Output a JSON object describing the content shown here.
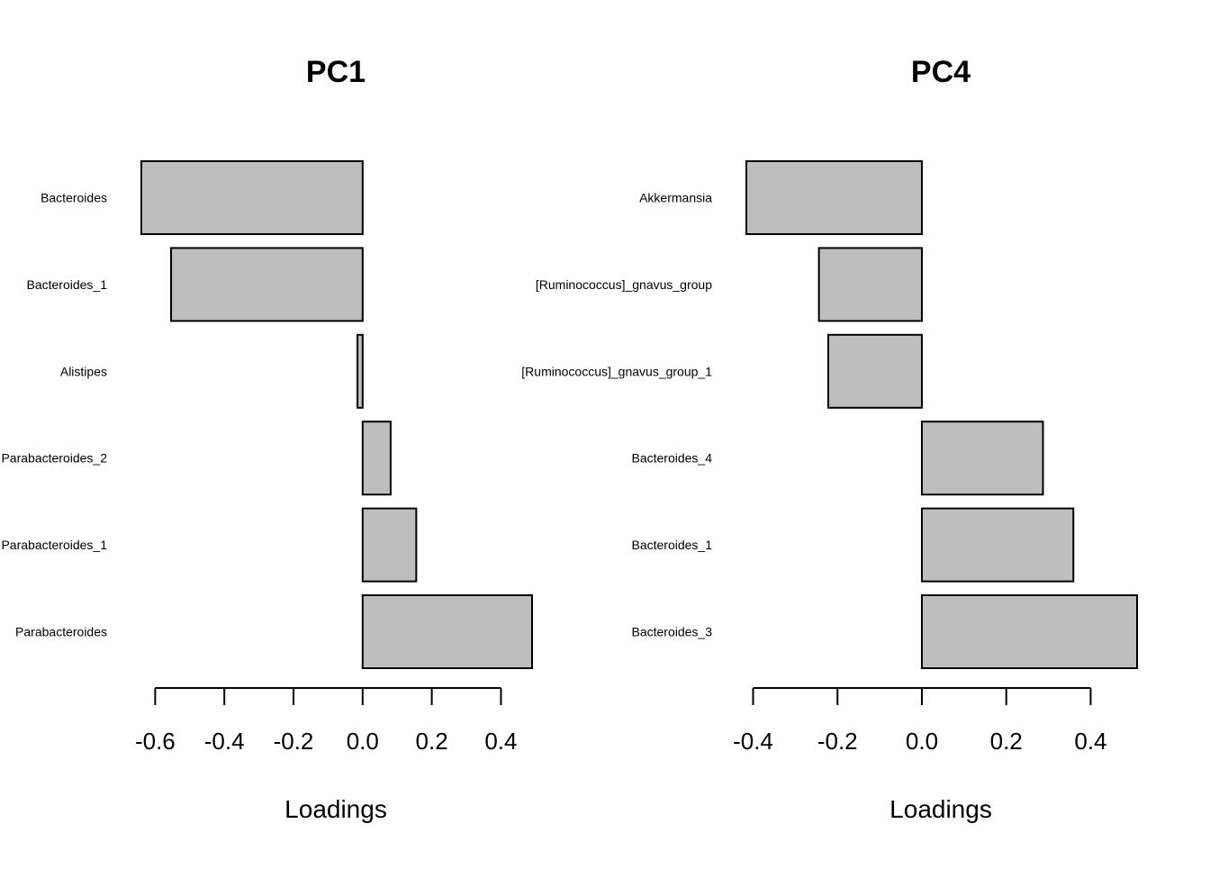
{
  "chart_data": [
    {
      "type": "bar",
      "orientation": "horizontal",
      "title": "PC1",
      "xlabel": "Loadings",
      "categories": [
        "Bacteroides",
        "Bacteroides_1",
        "Alistipes",
        "Parabacteroides_2",
        "Parabacteroides_1",
        "Parabacteroides"
      ],
      "values": [
        -0.64,
        -0.554,
        -0.015,
        0.081,
        0.155,
        0.49
      ],
      "xticks": [
        -0.6,
        -0.4,
        -0.2,
        0.0,
        0.2,
        0.4
      ],
      "xtick_labels": [
        "-0.6",
        "-0.4",
        "-0.2",
        "0.0",
        "0.2",
        "0.4"
      ],
      "xlim": [
        -0.64,
        0.49
      ],
      "bar_color": "#bebebe",
      "grid": false,
      "legend": "none"
    },
    {
      "type": "bar",
      "orientation": "horizontal",
      "title": "PC4",
      "xlabel": "Loadings",
      "categories": [
        "Akkermansia",
        "[Ruminococcus]_gnavus_group",
        "[Ruminococcus]_gnavus_group_1",
        "Bacteroides_4",
        "Bacteroides_1",
        "Bacteroides_3"
      ],
      "values": [
        -0.416,
        -0.244,
        -0.222,
        0.287,
        0.359,
        0.51
      ],
      "xticks": [
        -0.4,
        -0.2,
        0.0,
        0.2,
        0.4
      ],
      "xtick_labels": [
        "-0.4",
        "-0.2",
        "0.0",
        "0.2",
        "0.4"
      ],
      "xlim": [
        -0.416,
        0.51
      ],
      "bar_color": "#bebebe",
      "grid": false,
      "legend": "none"
    }
  ]
}
